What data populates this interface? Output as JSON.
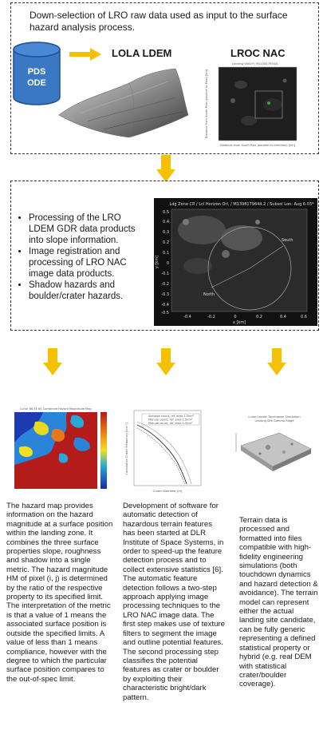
{
  "top": {
    "title": "Down-selection of LRO raw data used as input to the surface hazard analysis process.",
    "db_label_1": "PDS",
    "db_label_2": "ODE",
    "lola_label": "LOLA LDEM",
    "lroc_label": "LROC NAC",
    "lroc_plot_title": "Landing Site29 / M1158170542L",
    "lroc_xlabel": "Distance from South Pole (parallel to meridian) [km]",
    "lroc_ylabel": "Distance from South Pole (positive to East) [km]"
  },
  "middle": {
    "bullets": [
      "Processing of the LRO LDEM GDR data products into slope information.",
      "Image registration and processing of LRO NAC image data products.",
      "Shadow hazards and boulder/crater hazards."
    ],
    "plot_title": "Ldg Zone CR / Lcl Horizon Orl. / M1398179644.2 / Subsol Lon: Aug 6:03*",
    "south_label": "South",
    "north_label": "North",
    "x_label": "x [km]",
    "y_label": "y [km]",
    "y_ticks": [
      "0.5",
      "0.4",
      "0.3",
      "0.2",
      "0.1",
      "0",
      "-0.1",
      "-0.2",
      "-0.3",
      "-0.4",
      "-0.5"
    ],
    "x_ticks": [
      "-0.4",
      "-0.2",
      "0",
      "0.2",
      "0.4",
      "0.6"
    ]
  },
  "columns": [
    {
      "heatmap_title": "Lunar 86.5E 8S Combined Hazard Magnitude Map",
      "text": "The hazard map provides information on the hazard magnitude at a surface position within the landing zone. It combines the three surface properties slope, roughness and shadow into a single metric. The hazard magnitude HM of pixel (i, j) is determined by the ratio of the respective property to its specified limit. The interpretation of the metric is that a value of 1 means the associated surface position is outside the specified limits. A value of less than 1 means compliance, however with the degree to which the particular surface position compares to the out-of-spec limit."
    },
    {
      "legend": [
        "Average count, ref. area 1.5km²",
        "Manual count, ref. area 1.5km²",
        "Manual count, ref. area 1.5km²"
      ],
      "xlabel": "Crater Diameter [m]",
      "ylabel": "Cumulative Crater Frequency [km⁻²]",
      "text": "Development of software for automatic detection of hazardous terrain features has been started at DLR Institute of Space Systems, in order to speed-up the feature detection process and to collect extensive statistics [6].\nThe automatic feature detection follows a two-step approach applying image processing techniques to the LRO NAC image data. The first step makes use of texture filters to segment the image and outline potential features. The second processing step classifies the potential features as crater or boulder by exploiting their characteristic bright/dark pattern."
    },
    {
      "model_title_1": "Lunar Lander Touchdown Simulation",
      "model_title_2": "Landing Site Gamma Ridge",
      "text": "Terrain data is processed and formatted into files compatible with high-fidelity engineering simulations (both touchdown dynamics and hazard detection & avoidance). The terrain model can represent either the actual landing site candidate, can be fully generic representing a defined statistical property or hybrid (e.g. real DEM with statistical crater/boulder coverage)."
    }
  ],
  "colors": {
    "arrow": "#f5c000",
    "db_fill": "#3a77c4",
    "db_border": "#214f8a",
    "dashed_border": "#333333"
  }
}
